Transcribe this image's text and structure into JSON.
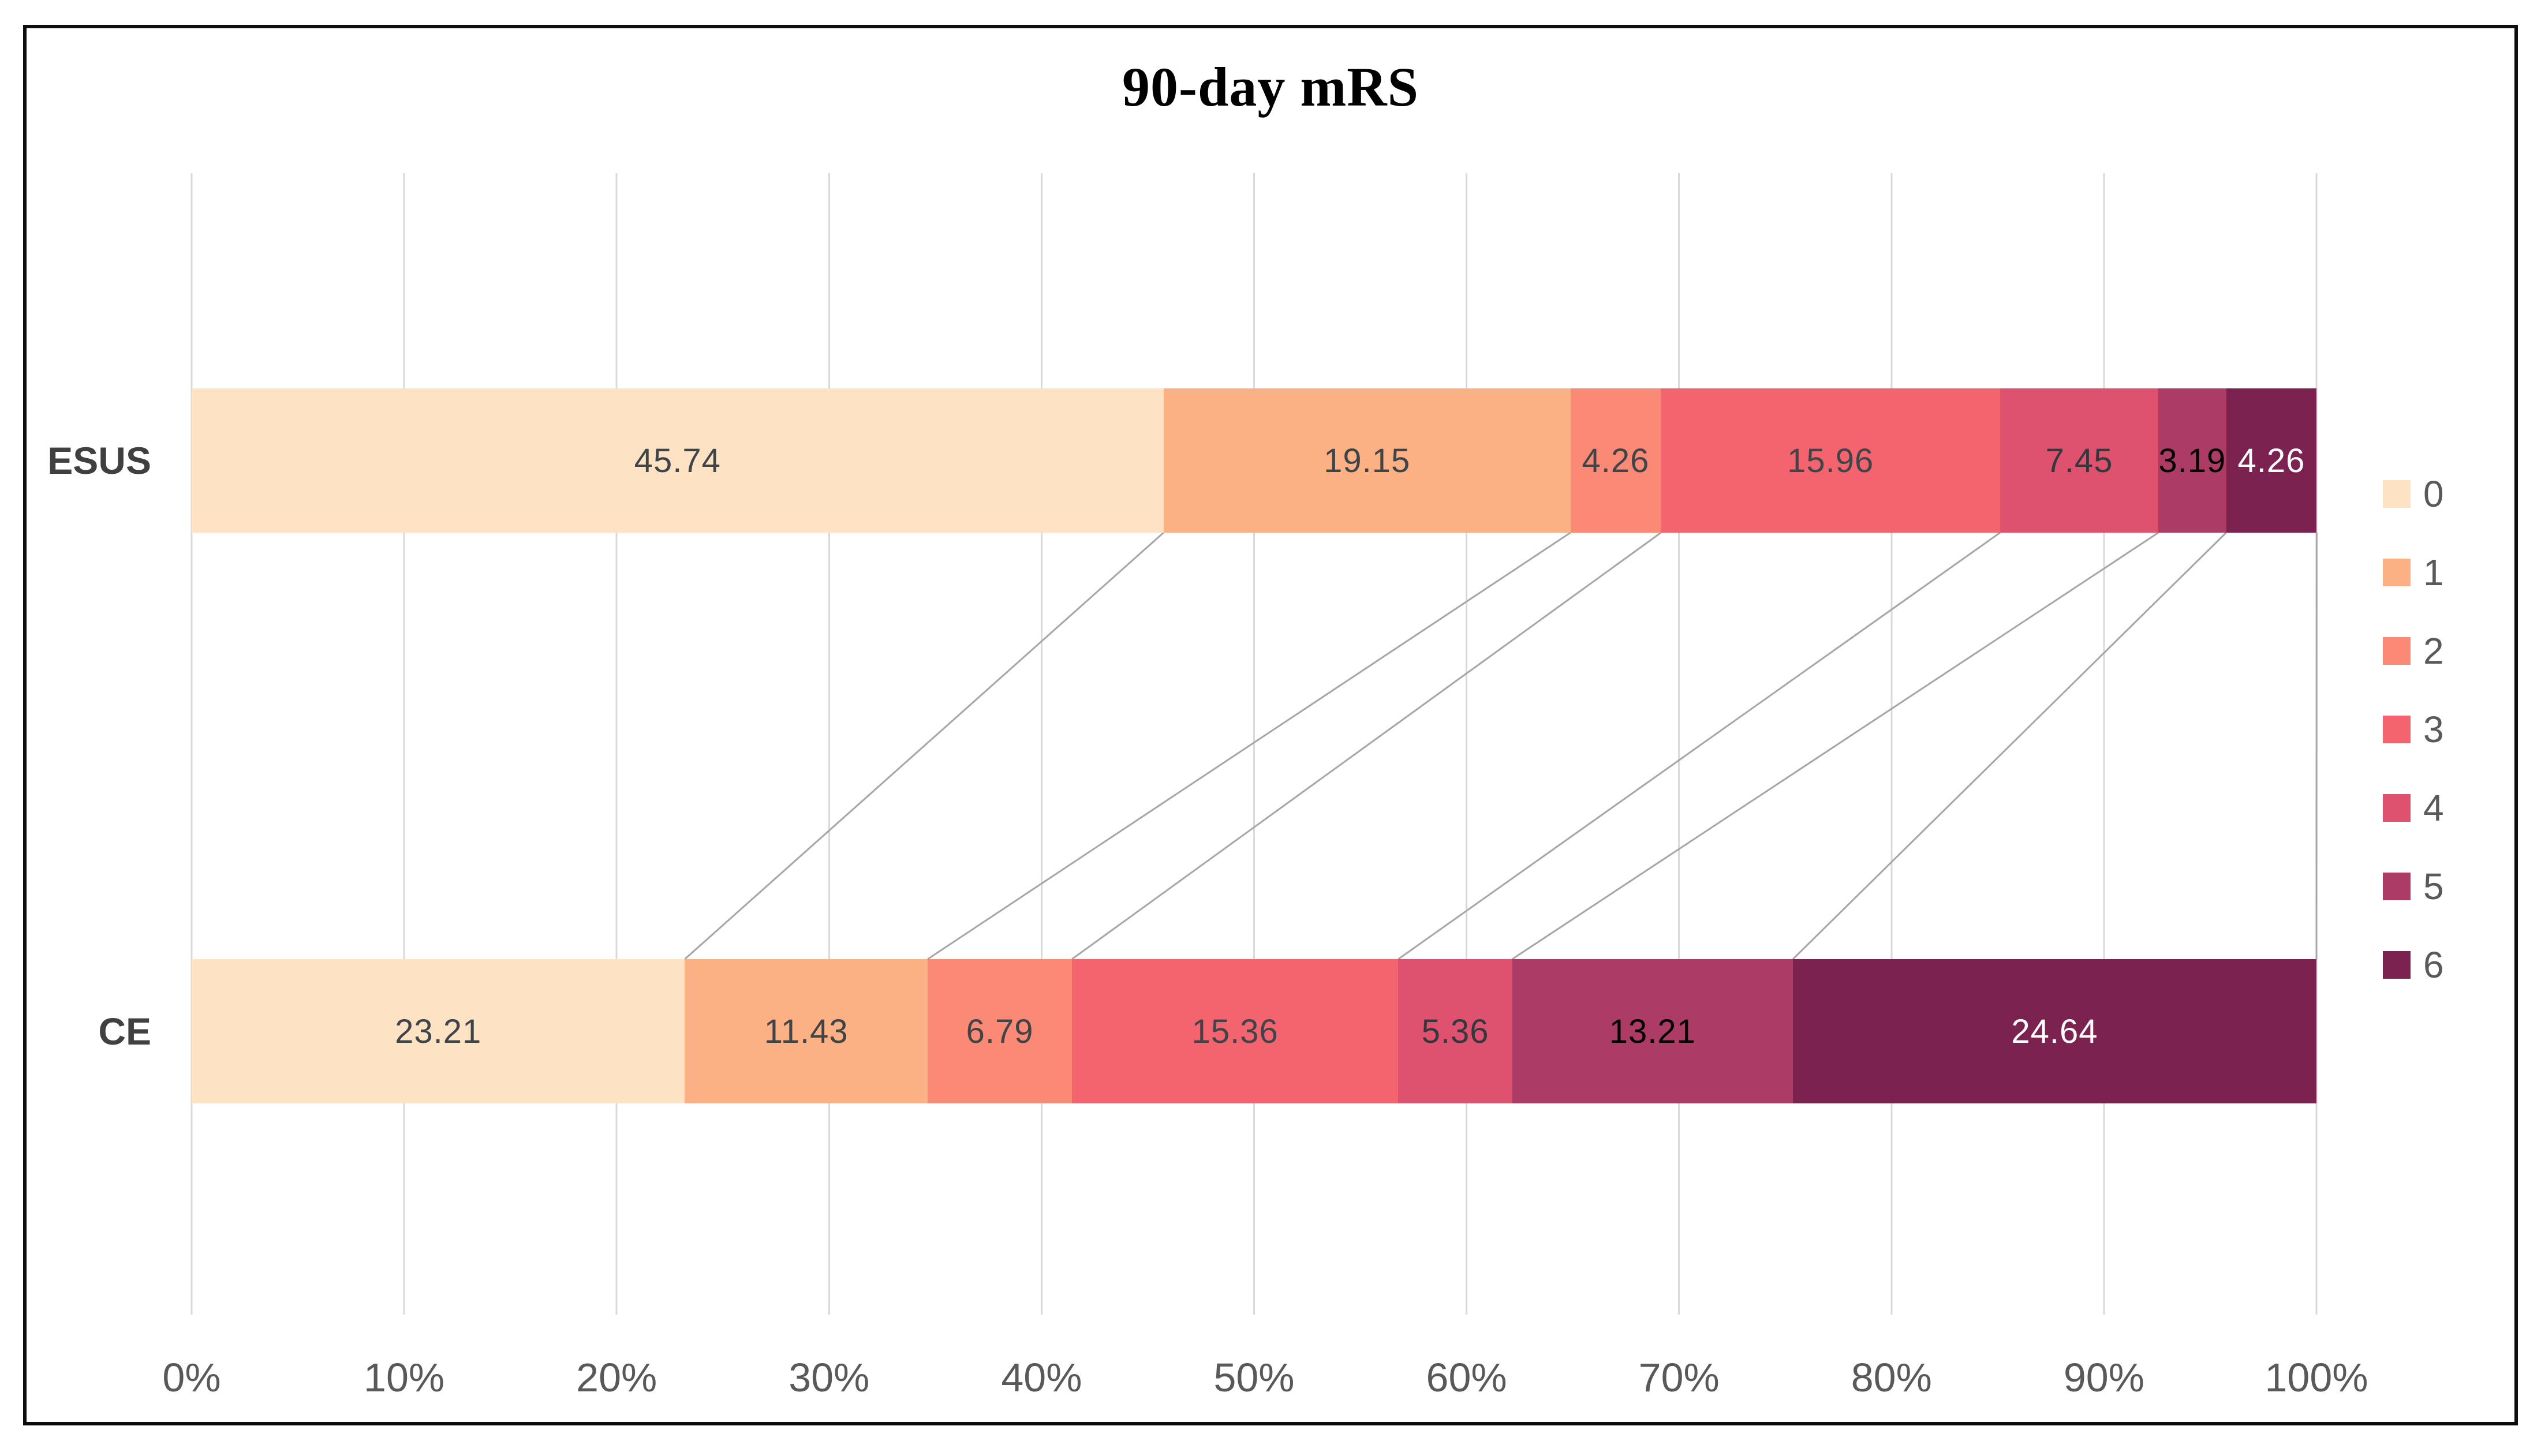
{
  "chart_data": {
    "type": "bar",
    "orientation": "horizontal",
    "stacked": true,
    "title": "90-day mRS",
    "categories": [
      "ESUS",
      "CE"
    ],
    "series": [
      {
        "name": "0",
        "color": "#fde3c3",
        "label_color": "#3f4449",
        "values": [
          45.74,
          23.21
        ]
      },
      {
        "name": "1",
        "color": "#fbb184",
        "label_color": "#3f4449",
        "values": [
          19.15,
          11.43
        ]
      },
      {
        "name": "2",
        "color": "#fa8a76",
        "label_color": "#3f4449",
        "values": [
          4.26,
          6.79
        ]
      },
      {
        "name": "3",
        "color": "#f4646f",
        "label_color": "#3f4449",
        "values": [
          15.96,
          15.36
        ]
      },
      {
        "name": "4",
        "color": "#de5270",
        "label_color": "#33383d",
        "values": [
          7.45,
          5.36
        ]
      },
      {
        "name": "5",
        "color": "#ac3c66",
        "label_color": "#000000",
        "values": [
          3.19,
          13.21
        ]
      },
      {
        "name": "6",
        "color": "#7c2251",
        "label_color": "#ffffff",
        "values": [
          4.26,
          24.64
        ]
      }
    ],
    "x_ticks": [
      "0%",
      "10%",
      "20%",
      "30%",
      "40%",
      "50%",
      "60%",
      "70%",
      "80%",
      "90%",
      "100%"
    ],
    "xlim": [
      0,
      100
    ],
    "grid": true,
    "legend_position": "right",
    "legend_labels": [
      "0",
      "1",
      "2",
      "3",
      "4",
      "5",
      "6"
    ],
    "connectors_between_bars": true
  },
  "style": {
    "grid_color": "#d9d9d9",
    "connector_color": "#a6a6a6",
    "axis_text_color": "#595959",
    "category_label_color": "#404040",
    "frame_border_color": "#0d0d0d",
    "background_color": "#ffffff"
  }
}
